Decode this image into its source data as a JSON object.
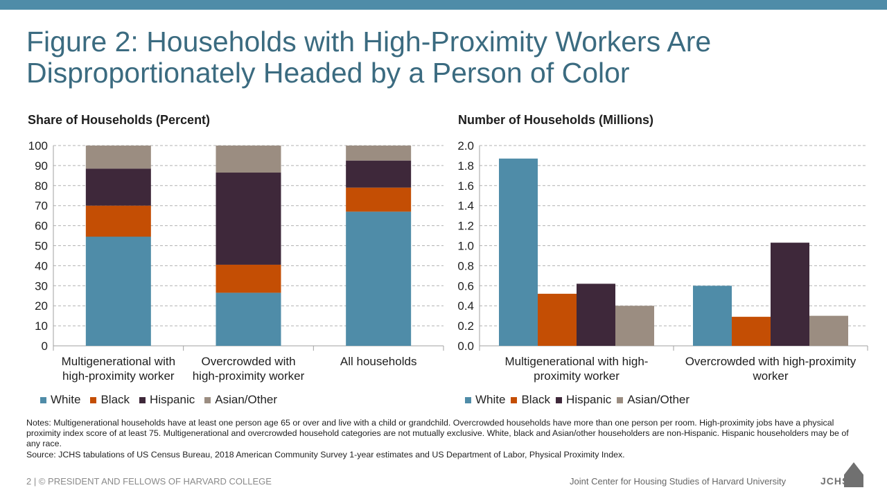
{
  "title_lines": [
    "Figure 2: Households with High-Proximity Workers Are",
    "Disproportionately Headed by a Person of Color"
  ],
  "colors": {
    "White": "#4f8ca8",
    "Black": "#c44e04",
    "Hispanic": "#3e283a",
    "Asian/Other": "#9b8d81",
    "title": "#3b6b80",
    "topbar": "#4f8ca8"
  },
  "chart_data": [
    {
      "type": "bar",
      "stacked": true,
      "title": "Share of Households (Percent)",
      "categories": [
        [
          "Multigenerational with",
          "high-proximity worker"
        ],
        [
          "Overcrowded with",
          "high-proximity worker"
        ],
        [
          "All households"
        ]
      ],
      "series": [
        {
          "name": "White",
          "values": [
            54.5,
            26.5,
            67
          ]
        },
        {
          "name": "Black",
          "values": [
            15.5,
            14,
            12
          ]
        },
        {
          "name": "Hispanic",
          "values": [
            18.5,
            46,
            13.5
          ]
        },
        {
          "name": "Asian/Other",
          "values": [
            11.5,
            13.5,
            7.5
          ]
        }
      ],
      "ylim": [
        0,
        100
      ],
      "yticks": [
        "0",
        "10",
        "20",
        "30",
        "40",
        "50",
        "60",
        "70",
        "80",
        "90",
        "100"
      ],
      "grid": true,
      "legend_position": "bottom-left"
    },
    {
      "type": "bar",
      "stacked": false,
      "title": "Number of Households (Millions)",
      "categories": [
        [
          "Multigenerational with high-",
          "proximity worker"
        ],
        [
          "Overcrowded with high-proximity",
          "worker"
        ]
      ],
      "series": [
        {
          "name": "White",
          "values": [
            1.87,
            0.6
          ]
        },
        {
          "name": "Black",
          "values": [
            0.52,
            0.29
          ]
        },
        {
          "name": "Hispanic",
          "values": [
            0.62,
            1.03
          ]
        },
        {
          "name": "Asian/Other",
          "values": [
            0.4,
            0.3
          ]
        }
      ],
      "ylim": [
        0,
        2.0
      ],
      "yticks": [
        "0.0",
        "0.2",
        "0.4",
        "0.6",
        "0.8",
        "1.0",
        "1.2",
        "1.4",
        "1.6",
        "1.8",
        "2.0"
      ],
      "grid": true,
      "legend_position": "bottom-left"
    }
  ],
  "notes": "Notes: Multigenerational  households have at least one person age 65 or over and live with a child or grandchild. Overcrowded households have more than one person per room. High-proximity jobs have a physical proximity index  score of at least 75. Multigenerational  and overcrowded household categories are not mutually exclusive. White, black and Asian/other householders are non-Hispanic. Hispanic householders may be of any race.",
  "source": "Source: JCHS tabulations of US Census Bureau, 2018 American Community Survey 1-year estimates and US Department of Labor, Physical Proximity Index.",
  "footer": {
    "left": "2 | © PRESIDENT AND FELLOWS OF HARVARD COLLEGE",
    "right": "Joint Center for Housing Studies of Harvard University",
    "logo_text": "JCHS"
  }
}
